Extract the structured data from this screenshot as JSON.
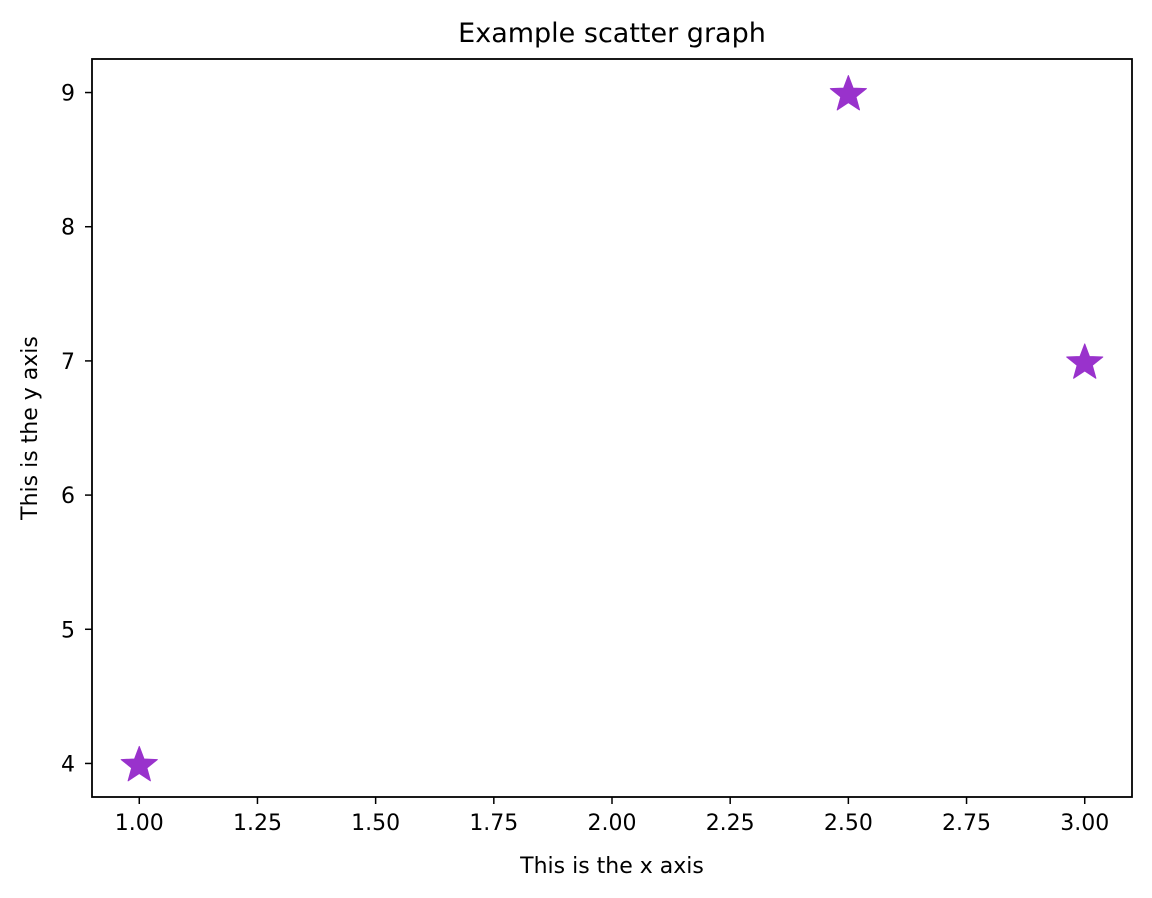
{
  "chart_data": {
    "type": "scatter",
    "title": "Example scatter graph",
    "xlabel": "This is the x axis",
    "ylabel": "This is the y axis",
    "xlim": [
      0.9,
      3.1
    ],
    "ylim": [
      3.75,
      9.25
    ],
    "xticks": [
      1.0,
      1.25,
      1.5,
      1.75,
      2.0,
      2.25,
      2.5,
      2.75,
      3.0
    ],
    "xtick_labels": [
      "1.00",
      "1.25",
      "1.50",
      "1.75",
      "2.00",
      "2.25",
      "2.50",
      "2.75",
      "3.00"
    ],
    "yticks": [
      4,
      5,
      6,
      7,
      8,
      9
    ],
    "ytick_labels": [
      "4",
      "5",
      "6",
      "7",
      "8",
      "9"
    ],
    "grid": false,
    "legend": false,
    "marker": "star",
    "marker_color": "#9932CC",
    "series": [
      {
        "x": [
          1.0,
          2.5,
          3.0
        ],
        "y": [
          4,
          9,
          7
        ]
      }
    ]
  }
}
